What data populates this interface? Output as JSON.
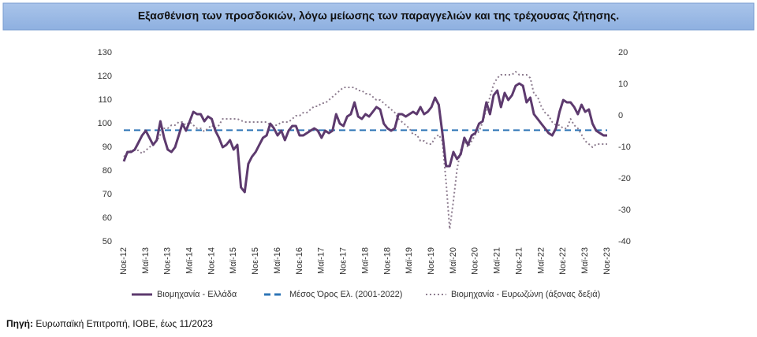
{
  "chart_data": {
    "type": "line",
    "title": "Εξασθένιση των προσδοκιών, λόγω μείωσης των παραγγελιών και της τρέχουσας ζήτησης.",
    "source_label": "Πηγή:",
    "source": "Ευρωπαϊκή Επιτροπή, ΙΟΒΕ, έως 11/2023",
    "categories": [
      "Νοε-12",
      null,
      null,
      null,
      null,
      null,
      "Μαϊ-13",
      null,
      null,
      null,
      null,
      null,
      "Νοε-13",
      null,
      null,
      null,
      null,
      null,
      "Μαϊ-14",
      null,
      null,
      null,
      null,
      null,
      "Νοε-14",
      null,
      null,
      null,
      null,
      null,
      "Μαϊ-15",
      null,
      null,
      null,
      null,
      null,
      "Νοε-15",
      null,
      null,
      null,
      null,
      null,
      "Μαϊ-16",
      null,
      null,
      null,
      null,
      null,
      "Νοε-16",
      null,
      null,
      null,
      null,
      null,
      "Μαϊ-17",
      null,
      null,
      null,
      null,
      null,
      "Νοε-17",
      null,
      null,
      null,
      null,
      null,
      "Μαϊ-18",
      null,
      null,
      null,
      null,
      null,
      "Νοε-18",
      null,
      null,
      null,
      null,
      null,
      "Μαϊ-19",
      null,
      null,
      null,
      null,
      null,
      "Νοε-19",
      null,
      null,
      null,
      null,
      null,
      "Μαϊ-20",
      null,
      null,
      null,
      null,
      null,
      "Νοε-20",
      null,
      null,
      null,
      null,
      null,
      "Μαϊ-21",
      null,
      null,
      null,
      null,
      null,
      "Νοε-21",
      null,
      null,
      null,
      null,
      null,
      "Μαϊ-22",
      null,
      null,
      null,
      null,
      null,
      "Νοε-22",
      null,
      null,
      null,
      null,
      null,
      "Μαϊ-23",
      null,
      null,
      null,
      null,
      null,
      "Νοε-23"
    ],
    "series": [
      {
        "name": "Βιομηχανία  - Ελλάδα",
        "color": "#5d3a6e",
        "dash": "solid",
        "values": [
          84,
          88,
          88,
          89,
          92,
          95,
          97,
          94,
          91,
          93,
          101,
          94,
          89,
          88,
          90,
          95,
          100,
          97,
          101,
          105,
          104,
          104,
          101,
          103,
          102,
          97,
          94,
          90,
          91,
          93,
          89,
          91,
          73,
          71,
          83,
          86,
          88,
          91,
          94,
          95,
          100,
          98,
          95,
          97,
          93,
          97,
          99,
          99,
          95,
          95,
          96,
          97,
          98,
          97,
          94,
          97,
          96,
          97,
          104,
          100,
          99,
          103,
          104,
          109,
          103,
          102,
          104,
          103,
          105,
          107,
          106,
          100,
          98,
          97,
          98,
          104,
          104,
          103,
          104,
          105,
          104,
          107,
          104,
          105,
          107,
          111,
          108,
          96,
          82,
          82,
          88,
          85,
          87,
          94,
          91,
          95,
          96,
          100,
          101,
          109,
          104,
          112,
          114,
          107,
          113,
          110,
          112,
          116,
          117,
          116,
          109,
          111,
          104,
          102,
          100,
          98,
          96,
          95,
          98,
          105,
          110,
          109,
          109,
          107,
          104,
          108,
          105,
          106,
          100,
          97,
          96,
          95,
          95
        ]
      },
      {
        "name": "Βιομηχανία - Ευρωζώνη (άξονας δεξιά)",
        "color": "#8e7d90",
        "dash": "dotted",
        "axis": "y2",
        "values": [
          -13,
          -12,
          -11,
          -11,
          -11,
          -12,
          -11,
          -10,
          -9,
          -8,
          -6,
          -4,
          -4,
          -3,
          -3,
          -2,
          -2,
          -3,
          -2,
          -3,
          -4,
          -4,
          -5,
          -4,
          -3,
          -4,
          -3,
          -1,
          -1,
          -1,
          -1,
          -1,
          -1.5,
          -2,
          -2,
          -2,
          -2,
          -2,
          -2,
          -2,
          -3,
          -3,
          -3,
          -2,
          -2,
          -2,
          -1,
          0,
          0,
          1,
          1,
          2,
          3,
          3,
          4,
          4,
          5,
          6,
          7,
          8,
          9,
          9,
          9,
          9,
          8,
          8,
          7,
          7,
          6,
          5,
          5,
          4,
          3,
          2,
          1,
          -1,
          -2,
          -3,
          -4,
          -6,
          -6,
          -8,
          -8,
          -9,
          -9,
          -7,
          -6,
          -8,
          -21,
          -36,
          -27,
          -17,
          -11,
          -8,
          -10,
          -8,
          -6,
          -5,
          -2,
          2,
          6,
          10,
          12,
          13,
          13,
          13,
          13,
          14,
          13,
          13,
          13,
          12,
          7,
          6,
          3,
          1,
          0,
          -2,
          -3,
          -3,
          -4,
          -4,
          -1,
          -3,
          -4,
          -6,
          -8,
          -9,
          -10,
          -9,
          -9,
          -9,
          -9
        ]
      }
    ],
    "reference_line": {
      "name": "Μέσος Όρος Ελ. (2001-2022)",
      "value": 97.2,
      "color": "#2e75b6",
      "dash": "dashed"
    },
    "ylim": [
      50,
      130
    ],
    "yticks": [
      50,
      60,
      70,
      80,
      90,
      100,
      110,
      120,
      130
    ],
    "y2lim": [
      -40,
      20
    ],
    "y2ticks": [
      -40,
      -30,
      -20,
      -10,
      0,
      10,
      20
    ],
    "grid": false
  }
}
